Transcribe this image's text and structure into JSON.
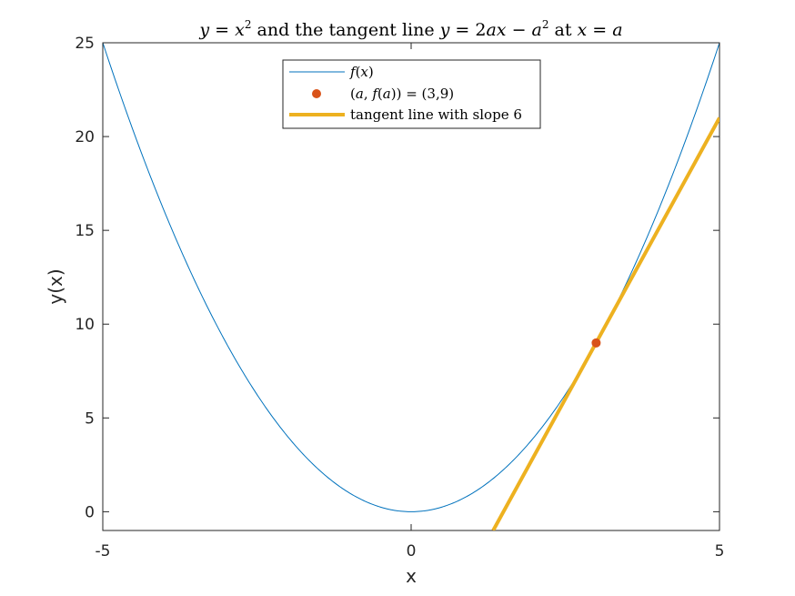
{
  "chart_data": {
    "type": "line",
    "title": "y = x^2 and the tangent line y = 2ax - a^2 at x = a",
    "xlabel": "x",
    "ylabel": "y(x)",
    "xlim": [
      -5,
      5
    ],
    "ylim": [
      -1,
      25
    ],
    "xticks": [
      -5,
      0,
      5
    ],
    "yticks": [
      0,
      5,
      10,
      15,
      20,
      25
    ],
    "grid": false,
    "legend_position": "top-center",
    "series": [
      {
        "name": "f(x)",
        "kind": "line",
        "color": "#0072BD",
        "function": "x^2",
        "x": [
          -5,
          -4,
          -3,
          -2,
          -1,
          0,
          1,
          2,
          3,
          4,
          5
        ],
        "y": [
          25,
          16,
          9,
          4,
          1,
          0,
          1,
          4,
          9,
          16,
          25
        ]
      },
      {
        "name": "(a, f(a)) = (3,9)",
        "kind": "point",
        "color": "#D95319",
        "x": [
          3
        ],
        "y": [
          9
        ]
      },
      {
        "name": "tangent line with slope 6",
        "kind": "line",
        "color": "#EDB120",
        "function": "6x - 9",
        "x": [
          1.33,
          5
        ],
        "y": [
          -1,
          21
        ]
      }
    ]
  }
}
